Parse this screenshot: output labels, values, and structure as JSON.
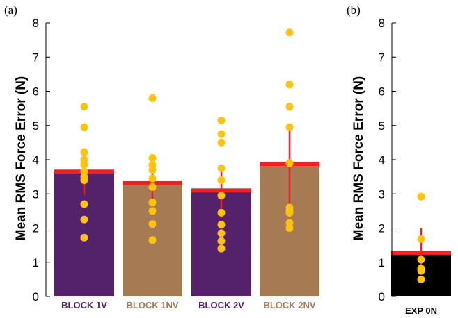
{
  "chart_data": [
    {
      "type": "bar",
      "panel_label": "(a)",
      "ylabel": "Mean RMS Force Error  (N)",
      "ylim": [
        0,
        8
      ],
      "yticks": [
        "0",
        "1",
        "2",
        "3",
        "4",
        "5",
        "6",
        "7",
        "8"
      ],
      "grid": false,
      "categories": [
        "BLOCK 1V",
        "BLOCK 1NV",
        "BLOCK 2V",
        "BLOCK 2NV"
      ],
      "bar_colors": [
        "#54226a",
        "#a67a52",
        "#54226a",
        "#a67a52"
      ],
      "label_colors": [
        "#54226a",
        "#a67a52",
        "#54226a",
        "#a67a52"
      ],
      "mean_line_color": "#ee2222",
      "point_color": "#ffc20e",
      "values": [
        3.65,
        3.32,
        3.1,
        3.88
      ],
      "error_low": [
        2.97,
        2.75,
        2.3,
        2.65
      ],
      "error_high": [
        4.22,
        3.93,
        3.85,
        5.0
      ],
      "points": [
        [
          5.55,
          4.95,
          4.22,
          4.0,
          3.85,
          3.65,
          3.5,
          3.4,
          2.7,
          2.25,
          1.72
        ],
        [
          5.8,
          4.05,
          3.85,
          3.7,
          3.45,
          3.2,
          2.75,
          2.5,
          2.12,
          1.65
        ],
        [
          5.15,
          4.75,
          4.5,
          3.75,
          3.4,
          2.95,
          2.45,
          2.1,
          1.85,
          1.62,
          1.4
        ],
        [
          7.72,
          6.2,
          5.55,
          4.95,
          3.9,
          2.6,
          2.5,
          2.45,
          2.15,
          2.0
        ]
      ]
    },
    {
      "type": "bar",
      "panel_label": "(b)",
      "ylabel": "Mean RMS Force Error  (N)",
      "ylim": [
        0,
        8
      ],
      "yticks": [
        "0",
        "1",
        "2",
        "3",
        "4",
        "5",
        "6",
        "7",
        "8"
      ],
      "grid": false,
      "categories": [
        "EXP 0N"
      ],
      "bar_colors": [
        "#000000"
      ],
      "label_colors": [
        "#000000"
      ],
      "mean_line_color": "#ee2222",
      "point_color": "#ffc20e",
      "values": [
        1.28
      ],
      "error_low": [
        0.7
      ],
      "error_high": [
        2.0
      ],
      "points": [
        [
          2.92,
          1.68,
          1.08,
          0.82,
          0.75,
          0.5
        ]
      ]
    }
  ]
}
